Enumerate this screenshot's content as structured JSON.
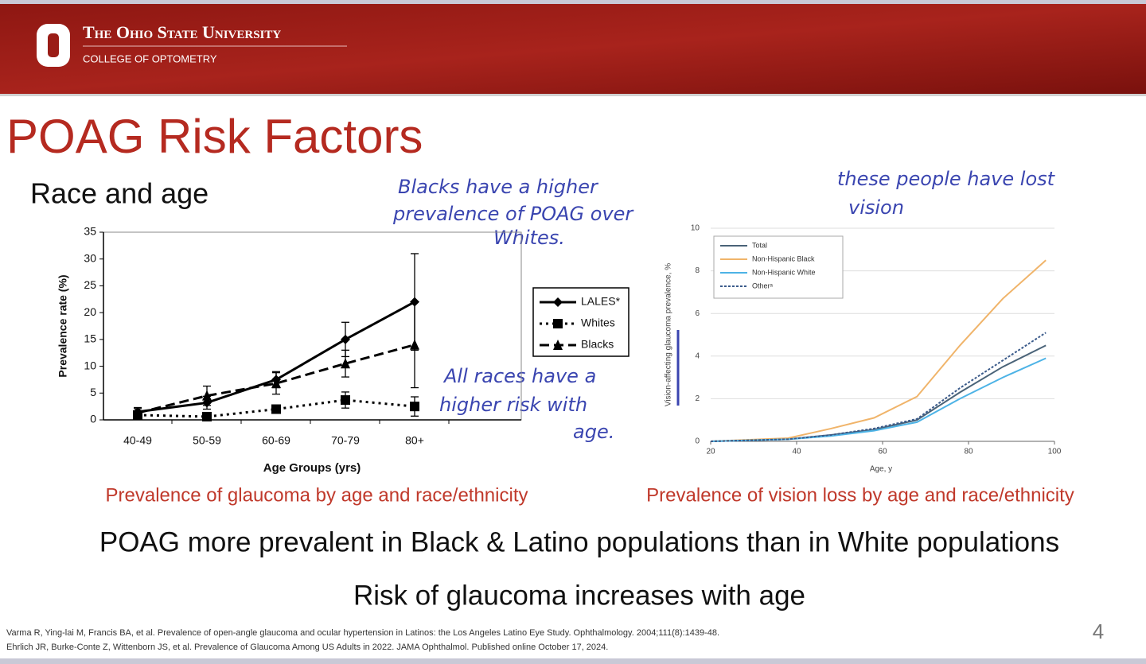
{
  "header": {
    "university": "The Ohio State University",
    "college": "COLLEGE OF OPTOMETRY"
  },
  "title": "POAG Risk Factors",
  "subtitle": "Race and age",
  "annotations": [
    [
      "Blacks have a higher",
      "prevalence of POAG over",
      "Whites."
    ],
    [
      "All races have a",
      "higher risk with",
      "age."
    ],
    [
      "these people have lost",
      "vision"
    ]
  ],
  "chart_data": [
    {
      "type": "line",
      "categories": [
        "40-49",
        "50-59",
        "60-69",
        "70-79",
        "80+"
      ],
      "xlabel": "Age Groups (yrs)",
      "ylabel": "Prevalence rate (%)",
      "ylim": [
        0,
        35
      ],
      "yticks": [
        0,
        5,
        10,
        15,
        20,
        25,
        30,
        35
      ],
      "grid": false,
      "series": [
        {
          "name": "LALES*",
          "color": "#000000",
          "dash": "solid",
          "marker": "diamond",
          "values": [
            1.5,
            3.2,
            7.5,
            15,
            22
          ],
          "errors": [
            0.8,
            1.2,
            1.5,
            3.2,
            9
          ]
        },
        {
          "name": "Whites",
          "color": "#000000",
          "dash": "dotted",
          "marker": "square",
          "values": [
            0.9,
            0.6,
            2.0,
            3.7,
            2.5
          ],
          "errors": [
            0.5,
            0.3,
            0.6,
            1.5,
            1.8
          ]
        },
        {
          "name": "Blacks",
          "color": "#000000",
          "dash": "dashed",
          "marker": "triangle",
          "values": [
            1.3,
            4.5,
            6.8,
            10.5,
            14
          ],
          "errors": [
            0.8,
            1.8,
            2.0,
            2.5,
            8
          ]
        }
      ]
    },
    {
      "type": "line",
      "x": [
        20,
        38,
        48,
        58,
        68,
        78,
        88,
        98
      ],
      "xlabel": "Age, y",
      "ylabel": "Vision-affecting glaucoma prevalence, %",
      "xlim": [
        20,
        100
      ],
      "xticks": [
        20,
        40,
        60,
        80,
        100
      ],
      "ylim": [
        0,
        10
      ],
      "yticks": [
        0,
        2,
        4,
        6,
        8,
        10
      ],
      "grid": true,
      "legend": "upper left",
      "series": [
        {
          "name": "Total",
          "color": "#4a6378",
          "dash": "solid",
          "values": [
            0,
            0.1,
            0.3,
            0.55,
            1.0,
            2.3,
            3.5,
            4.5
          ]
        },
        {
          "name": "Non-Hispanic Black",
          "color": "#f0b46a",
          "dash": "solid",
          "values": [
            0,
            0.15,
            0.6,
            1.1,
            2.1,
            4.5,
            6.7,
            8.5
          ]
        },
        {
          "name": "Non-Hispanic White",
          "color": "#4db3e6",
          "dash": "solid",
          "values": [
            0,
            0.1,
            0.25,
            0.5,
            0.9,
            2.0,
            3.0,
            3.9
          ]
        },
        {
          "name": "Otherᵃ",
          "color": "#3a5a8a",
          "dash": "dotted",
          "values": [
            0,
            0.1,
            0.3,
            0.6,
            1.05,
            2.5,
            3.8,
            5.1
          ]
        }
      ]
    }
  ],
  "captions": [
    "Prevalence of glaucoma by age and race/ethnicity",
    "Prevalence of vision loss by age and race/ethnicity"
  ],
  "statements": [
    "POAG more prevalent in Black & Latino populations than in White populations",
    "Risk of glaucoma increases with age"
  ],
  "references": [
    "Varma R, Ying-lai M, Francis BA, et al. Prevalence of open-angle glaucoma and ocular hypertension in Latinos: the Los Angeles Latino Eye Study. Ophthalmology. 2004;111(8):1439-48.",
    "Ehrlich JR, Burke-Conte Z, Wittenborn JS, et al. Prevalence of Glaucoma Among US Adults in 2022. JAMA Ophthalmol. Published online October 17, 2024."
  ],
  "page_number": "4"
}
